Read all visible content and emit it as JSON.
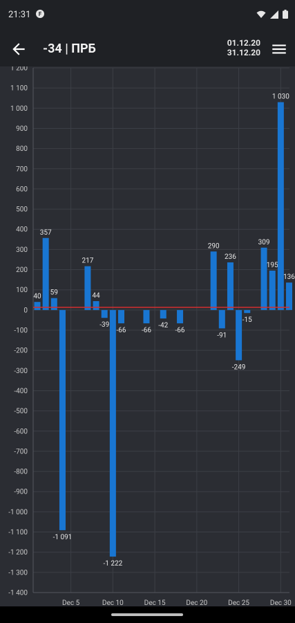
{
  "status_bar": {
    "time": "21:31",
    "notification_icon": "circle-f-icon",
    "icons": [
      "wifi-icon",
      "signal-icon",
      "battery-icon"
    ]
  },
  "app_bar": {
    "back_icon": "arrow-back-icon",
    "title": "-34 | ПРБ",
    "date_from": "01.12.20",
    "date_to": "31.12.20",
    "menu_icon": "menu-icon"
  },
  "colors": {
    "background": "#2b2d33",
    "bar": "#1976d2",
    "reference_line": "#d32f2f",
    "grid": "#3c3f46"
  },
  "chart_data": {
    "type": "bar",
    "x": [
      1,
      2,
      3,
      4,
      5,
      6,
      7,
      8,
      9,
      10,
      11,
      12,
      13,
      14,
      15,
      16,
      17,
      18,
      19,
      20,
      21,
      22,
      23,
      24,
      25,
      26,
      27,
      28,
      29,
      30,
      31
    ],
    "values": [
      40,
      357,
      59,
      -1091,
      null,
      null,
      217,
      44,
      -39,
      -1222,
      -66,
      null,
      null,
      -66,
      null,
      -42,
      null,
      -66,
      null,
      null,
      null,
      290,
      -91,
      236,
      -249,
      -15,
      null,
      309,
      195,
      1030,
      136
    ],
    "labels": [
      "40",
      "357",
      "59",
      "-1 091",
      "",
      "",
      "217",
      "44",
      "-39",
      "-1 222",
      "-66",
      "",
      "",
      "-66",
      "",
      "-42",
      "",
      "-66",
      "",
      "",
      "",
      "290",
      "-91",
      "236",
      "-249",
      "-15",
      "",
      "309",
      "195",
      "1 030",
      "136"
    ],
    "reference_value": 13,
    "ylim": [
      -1400,
      1200
    ],
    "y_ticks": [
      1200,
      1100,
      1000,
      900,
      800,
      700,
      600,
      500,
      400,
      300,
      200,
      100,
      0,
      -100,
      -200,
      -300,
      -400,
      -500,
      -600,
      -700,
      -800,
      -900,
      -1000,
      -1100,
      -1200,
      -1300,
      -1400
    ],
    "y_tick_labels": [
      "1 200",
      "1 100",
      "1 000",
      "900",
      "800",
      "700",
      "600",
      "500",
      "400",
      "300",
      "200",
      "100",
      "0",
      "-100",
      "-200",
      "-300",
      "-400",
      "-500",
      "-600",
      "-700",
      "-800",
      "-900",
      "-1 000",
      "-1 100",
      "-1 200",
      "-1 300",
      "-1 400"
    ],
    "x_ticks": [
      5,
      10,
      15,
      20,
      25,
      30
    ],
    "x_tick_labels": [
      "Dec 5",
      "Dec 10",
      "Dec 15",
      "Dec 20",
      "Dec 25",
      "Dec 30"
    ],
    "grid": true,
    "legend": "none"
  }
}
